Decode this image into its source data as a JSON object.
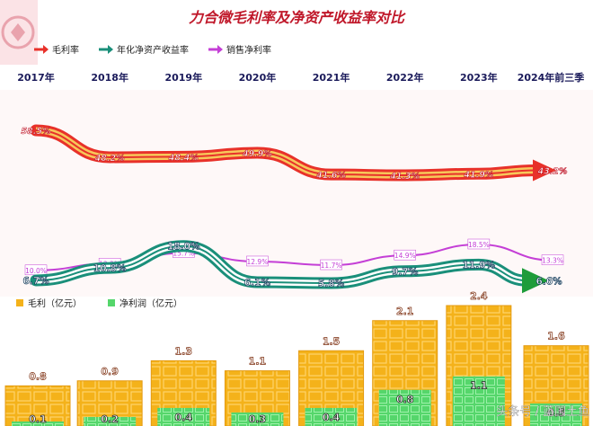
{
  "title": "力合微毛利率及净资产收益率对比",
  "watermark": "头条号 / 蓝国土鱼",
  "colors": {
    "gross_margin": "#e8312a",
    "gross_margin_stripe": "#f7c85a",
    "roe": "#1a8f7a",
    "roe_stripe": "#ffffff",
    "net_margin": "#c43fd6",
    "gross_profit_bar": "#f4b21a",
    "gross_profit_bar_light": "#ffd36b",
    "net_profit_bar": "#55d66b",
    "title_color": "#c0182a"
  },
  "chart_data": [
    {
      "type": "line",
      "title": "力合微毛利率及净资产收益率对比",
      "categories": [
        "2017年",
        "2018年",
        "2019年",
        "2020年",
        "2021年",
        "2022年",
        "2023年",
        "2024年前三季"
      ],
      "series": [
        {
          "name": "毛利率",
          "values": [
            58.5,
            48.2,
            48.4,
            49.9,
            41.6,
            41.3,
            41.9,
            43.2
          ],
          "labels": [
            "58.5%",
            "48.2%",
            "48.4%",
            "49.9%",
            "41.6%",
            "41.3%",
            "41.9%",
            "43.2%"
          ]
        },
        {
          "name": "年化净资产收益率",
          "values": [
            6.7,
            10.8,
            18.0,
            6.1,
            5.8,
            9.7,
            11.9,
            6.6
          ],
          "labels": [
            "6.7%",
            "10.8%",
            "18.0%",
            "6.1%",
            "5.8%",
            "9.7%",
            "11.9%",
            "6.6%"
          ]
        },
        {
          "name": "销售净利率",
          "values": [
            10.0,
            12.2,
            15.7,
            12.9,
            11.7,
            14.9,
            18.5,
            13.3
          ],
          "labels": [
            "10.0%",
            "12.2%",
            "15.7%",
            "12.9%",
            "11.7%",
            "14.9%",
            "18.5%",
            "13.3%"
          ]
        }
      ]
    },
    {
      "type": "bar",
      "categories": [
        "2017年",
        "2018年",
        "2019年",
        "2020年",
        "2021年",
        "2022年",
        "2023年",
        "2024年前三季"
      ],
      "series": [
        {
          "name": "毛利（亿元）",
          "values": [
            0.8,
            0.9,
            1.3,
            1.1,
            1.5,
            2.1,
            2.4,
            1.6
          ],
          "labels": [
            "0.8",
            "0.9",
            "1.3",
            "1.1",
            "1.5",
            "2.1",
            "2.4",
            "1.6"
          ]
        },
        {
          "name": "净利润（亿元）",
          "values": [
            0.1,
            0.2,
            0.4,
            0.3,
            0.4,
            0.8,
            1.1,
            0.5
          ],
          "labels": [
            "0.1",
            "0.2",
            "0.4",
            "0.3",
            "0.4",
            "0.8",
            "1.1",
            "0.5"
          ]
        }
      ]
    }
  ]
}
